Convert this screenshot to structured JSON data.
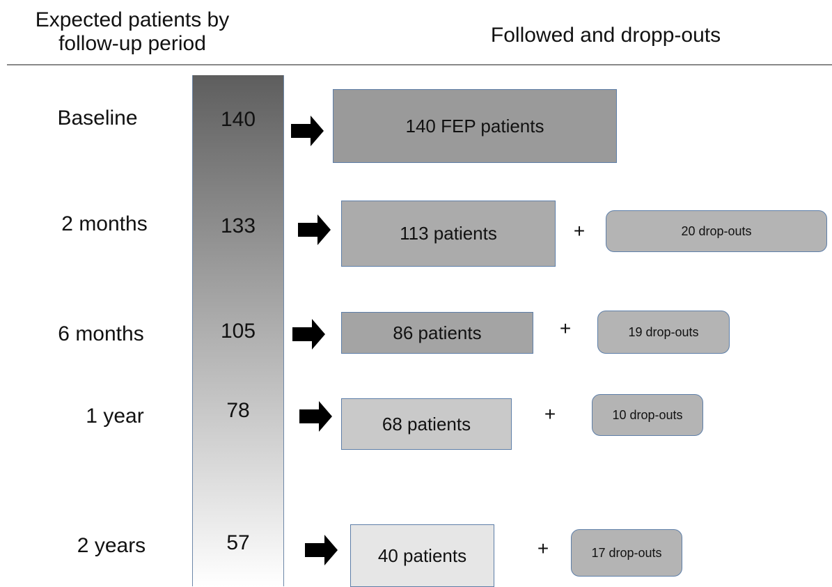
{
  "header": {
    "left": [
      "Expected patients by",
      "follow-up period"
    ],
    "right": "Followed and dropp-outs"
  },
  "rows": [
    {
      "period": "Baseline",
      "expected": "140",
      "followed": "140 FEP patients"
    },
    {
      "period": "2 months",
      "expected": "133",
      "followed": "113  patients",
      "plus": "+",
      "dropouts": "20 drop-outs"
    },
    {
      "period": "6 months",
      "expected": "105",
      "followed": "86  patients",
      "plus": "+",
      "dropouts": "19 drop-outs"
    },
    {
      "period": "1 year",
      "expected": "78",
      "followed": "68  patients",
      "plus": "+",
      "dropouts": "10 drop-outs"
    },
    {
      "period": "2 years",
      "expected": "57",
      "followed": "40 patients",
      "plus": "+",
      "dropouts": "17 drop-outs"
    }
  ]
}
